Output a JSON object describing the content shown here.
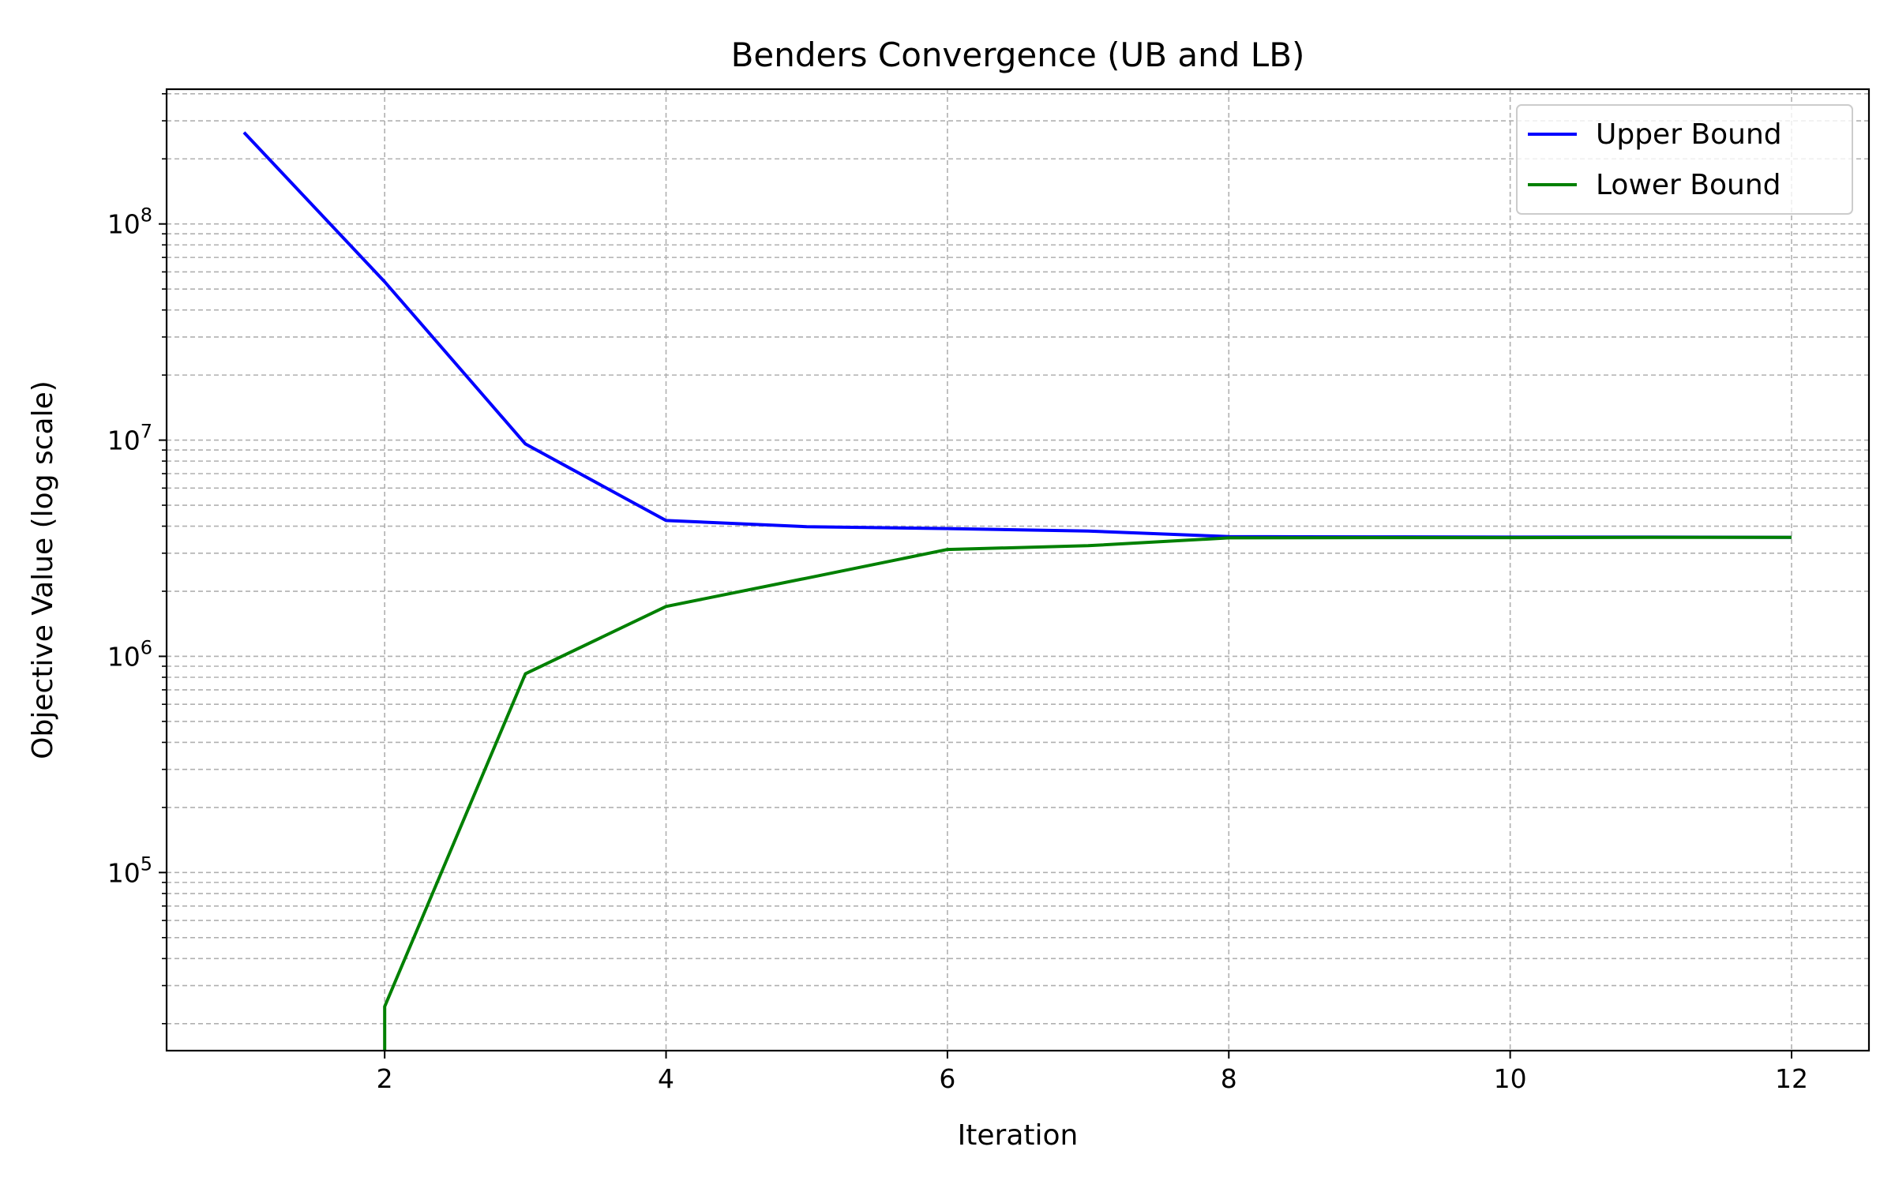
{
  "chart_data": {
    "type": "line",
    "title": "Benders Convergence (UB and LB)",
    "xlabel": "Iteration",
    "ylabel": "Objective Value (log scale)",
    "x_ticks": [
      2,
      4,
      6,
      8,
      10,
      12
    ],
    "xlim": [
      0.45,
      12.55
    ],
    "y_scale": "log",
    "ylim": [
      15000,
      420000000
    ],
    "y_ticks": [
      {
        "value": 100000,
        "base": "10",
        "exp": "5"
      },
      {
        "value": 1000000,
        "base": "10",
        "exp": "6"
      },
      {
        "value": 10000000,
        "base": "10",
        "exp": "7"
      },
      {
        "value": 100000000,
        "base": "10",
        "exp": "8"
      }
    ],
    "grid": true,
    "legend_position": "top-right",
    "series": [
      {
        "name": "Upper Bound",
        "color": "#0000ff",
        "x": [
          1,
          2,
          3,
          4,
          5,
          6,
          7,
          8,
          9,
          10,
          11,
          12
        ],
        "y": [
          265000000,
          54000000,
          9600000,
          4250000,
          3980000,
          3900000,
          3800000,
          3580000,
          3570000,
          3560000,
          3560000,
          3550000
        ]
      },
      {
        "name": "Lower Bound",
        "color": "#008000",
        "x": [
          2,
          2,
          3,
          4,
          5,
          6,
          7,
          8,
          9,
          10,
          11,
          12
        ],
        "y": [
          15000,
          24000,
          830000,
          1700000,
          2300000,
          3120000,
          3250000,
          3530000,
          3540000,
          3540000,
          3550000,
          3550000
        ]
      }
    ]
  }
}
